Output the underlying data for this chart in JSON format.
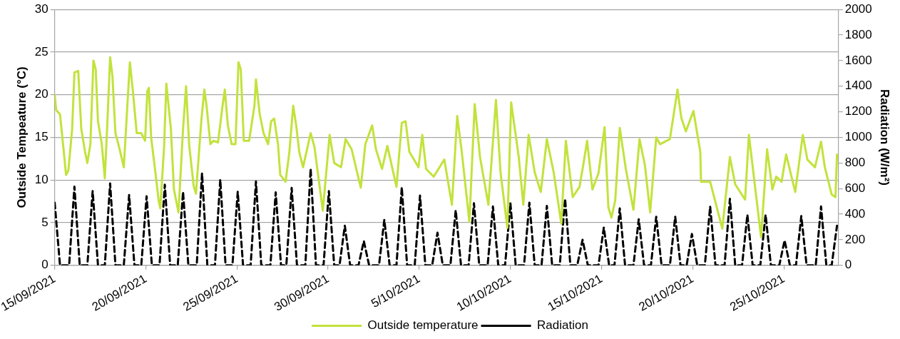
{
  "chart_data": {
    "type": "line",
    "ylabel": "Outside Tempeature (°C)",
    "y2label": "Radiation (W/m²)",
    "xlim": [
      "2021-09-15",
      "2021-10-28"
    ],
    "xticks": [
      {
        "value": "2021-09-15",
        "label": "15/09/2021"
      },
      {
        "value": "2021-09-20",
        "label": "20/09/2021"
      },
      {
        "value": "2021-09-25",
        "label": "25/09/2021"
      },
      {
        "value": "2021-09-30",
        "label": "30/09/2021"
      },
      {
        "value": "2021-10-05",
        "label": "5/10/2021"
      },
      {
        "value": "2021-10-10",
        "label": "10/10/2021"
      },
      {
        "value": "2021-10-15",
        "label": "15/10/2021"
      },
      {
        "value": "2021-10-20",
        "label": "20/10/2021"
      },
      {
        "value": "2021-10-25",
        "label": "25/10/2021"
      }
    ],
    "ylim": [
      0,
      30
    ],
    "yticks": [
      0,
      5,
      10,
      15,
      20,
      25,
      30
    ],
    "y2lim": [
      0,
      2000
    ],
    "y2ticks": [
      0,
      200,
      400,
      600,
      800,
      1000,
      1200,
      1400,
      1600,
      1800,
      2000
    ],
    "grid": "y",
    "legend": "bottom",
    "marker": "none",
    "series": [
      {
        "name": "Outside temperature",
        "color": "#c2e23c",
        "line_style": "solid",
        "x": [
          "2021-09-15T00:00",
          "2021-09-15T02:00",
          "2021-09-15T07:00",
          "2021-09-15T11:00",
          "2021-09-15T15:00",
          "2021-09-15T18:00",
          "2021-09-15T23:00",
          "2021-09-16T02:00",
          "2021-09-16T07:00",
          "2021-09-16T11:00",
          "2021-09-16T16:00",
          "2021-09-16T19:00",
          "2021-09-16T23:00",
          "2021-09-17T03:00",
          "2021-09-17T06:00",
          "2021-09-17T09:00",
          "2021-09-17T14:00",
          "2021-09-17T18:00",
          "2021-09-17T21:00",
          "2021-09-18T01:00",
          "2021-09-18T04:00",
          "2021-09-18T08:00",
          "2021-09-18T13:00",
          "2021-09-18T19:00",
          "2021-09-18T23:00",
          "2021-09-19T03:00",
          "2021-09-19T07:00",
          "2021-09-19T12:00",
          "2021-09-19T18:00",
          "2021-09-19T23:00",
          "2021-09-20T02:00",
          "2021-09-20T04:00",
          "2021-09-20T07:00",
          "2021-09-20T13:00",
          "2021-09-20T17:00",
          "2021-09-20T19:00",
          "2021-09-21T00:00",
          "2021-09-21T03:00",
          "2021-09-21T09:00",
          "2021-09-21T13:00",
          "2021-09-21T19:00",
          "2021-09-22T01:00",
          "2021-09-22T05:00",
          "2021-09-22T09:00",
          "2021-09-22T15:00",
          "2021-09-22T18:00",
          "2021-09-23T01:00",
          "2021-09-23T05:00",
          "2021-09-23T08:00",
          "2021-09-23T13:00",
          "2021-09-23T17:00",
          "2021-09-23T23:00",
          "2021-09-24T05:00",
          "2021-09-24T08:00",
          "2021-09-24T12:00",
          "2021-09-24T17:00",
          "2021-09-24T22:00",
          "2021-09-25T02:00",
          "2021-09-25T05:00",
          "2021-09-25T09:00",
          "2021-09-25T16:00",
          "2021-09-25T23:00",
          "2021-09-26T01:00",
          "2021-09-26T06:00",
          "2021-09-26T11:00",
          "2021-09-26T17:00",
          "2021-09-26T21:00",
          "2021-09-27T01:00",
          "2021-09-27T06:00",
          "2021-09-27T09:00",
          "2021-09-27T16:00",
          "2021-09-27T21:00",
          "2021-09-28T02:00",
          "2021-09-28T06:00",
          "2021-09-28T10:00",
          "2021-09-28T15:00",
          "2021-09-29T01:00",
          "2021-09-29T06:00",
          "2021-09-29T17:00",
          "2021-09-30T02:00",
          "2021-09-30T08:00",
          "2021-09-30T17:00",
          "2021-09-30T23:00",
          "2021-10-01T07:00",
          "2021-10-01T19:00",
          "2021-10-02T01:00",
          "2021-10-02T10:00",
          "2021-10-02T15:00",
          "2021-10-02T23:00",
          "2021-10-03T06:00",
          "2021-10-03T18:00",
          "2021-10-04T01:00",
          "2021-10-04T06:00",
          "2021-10-04T11:00",
          "2021-10-04T23:00",
          "2021-10-05T04:00",
          "2021-10-05T09:00",
          "2021-10-05T19:00",
          "2021-10-06T09:00",
          "2021-10-06T19:00",
          "2021-10-07T02:00",
          "2021-10-07T08:00",
          "2021-10-07T18:00",
          "2021-10-08T01:00",
          "2021-10-08T08:00",
          "2021-10-08T19:00",
          "2021-10-09T05:00",
          "2021-10-09T11:00",
          "2021-10-09T20:00",
          "2021-10-10T01:00",
          "2021-10-10T11:00",
          "2021-10-10T17:00",
          "2021-10-11T00:00",
          "2021-10-11T08:00",
          "2021-10-11T16:00",
          "2021-10-12T00:00",
          "2021-10-12T09:00",
          "2021-10-12T19:00",
          "2021-10-13T01:00",
          "2021-10-13T10:00",
          "2021-10-13T19:00",
          "2021-10-14T00:00",
          "2021-10-14T05:00",
          "2021-10-14T12:00",
          "2021-10-14T20:00",
          "2021-10-15T04:00",
          "2021-10-15T09:00",
          "2021-10-15T13:00",
          "2021-10-15T18:00",
          "2021-10-16T00:00",
          "2021-10-16T08:00",
          "2021-10-16T18:00",
          "2021-10-17T02:00",
          "2021-10-17T09:00",
          "2021-10-17T16:00",
          "2021-10-18T00:00",
          "2021-10-18T05:00",
          "2021-10-18T18:00",
          "2021-10-19T04:00",
          "2021-10-19T09:00",
          "2021-10-19T15:00",
          "2021-10-20T01:00",
          "2021-10-20T10:00",
          "2021-10-20T11:00",
          "2021-10-20T23:00",
          "2021-10-21T15:00",
          "2021-10-22T01:00",
          "2021-10-22T08:00",
          "2021-10-22T21:00",
          "2021-10-23T02:00",
          "2021-10-23T18:00",
          "2021-10-24T02:00",
          "2021-10-24T09:00",
          "2021-10-24T14:00",
          "2021-10-24T21:00",
          "2021-10-25T03:00",
          "2021-10-25T15:00",
          "2021-10-26T01:00",
          "2021-10-26T07:00",
          "2021-10-26T17:00",
          "2021-10-27T01:00",
          "2021-10-27T06:00",
          "2021-10-27T15:00",
          "2021-10-27T20:00",
          "2021-10-27T22:00"
        ],
        "values": [
          20.0,
          18.2,
          17.7,
          14.2,
          10.6,
          11.1,
          16.0,
          22.6,
          22.8,
          16.0,
          13.3,
          12.0,
          14.2,
          24.0,
          23.0,
          16.9,
          14.2,
          10.2,
          16.0,
          24.4,
          22.2,
          15.5,
          13.8,
          11.5,
          17.7,
          23.8,
          20.4,
          15.5,
          15.5,
          14.6,
          20.4,
          20.8,
          15.0,
          10.6,
          7.5,
          6.7,
          13.8,
          21.3,
          16.0,
          8.9,
          6.2,
          16.0,
          21.0,
          14.2,
          9.3,
          8.4,
          16.9,
          20.6,
          18.7,
          14.2,
          14.6,
          14.4,
          18.7,
          20.6,
          16.4,
          14.2,
          14.2,
          23.8,
          23.0,
          14.6,
          14.6,
          18.7,
          21.8,
          17.7,
          15.5,
          14.2,
          16.9,
          17.2,
          14.2,
          10.6,
          9.8,
          13.3,
          18.7,
          16.4,
          13.3,
          11.5,
          15.5,
          13.9,
          6.4,
          15.3,
          12.0,
          11.5,
          14.8,
          13.6,
          9.1,
          14.2,
          16.4,
          13.6,
          11.3,
          14.0,
          9.2,
          16.7,
          16.9,
          13.3,
          11.5,
          15.3,
          11.3,
          10.4,
          12.4,
          7.1,
          17.5,
          13.3,
          5.1,
          18.9,
          12.7,
          7.1,
          19.4,
          10.9,
          4.4,
          19.1,
          12.7,
          7.1,
          15.3,
          10.9,
          8.6,
          14.8,
          10.9,
          4.9,
          14.6,
          8.0,
          9.2,
          11.8,
          14.6,
          8.9,
          10.8,
          16.2,
          6.8,
          5.6,
          7.6,
          16.1,
          11.3,
          6.5,
          14.8,
          11.8,
          6.2,
          15.0,
          14.2,
          14.8,
          20.6,
          17.3,
          15.7,
          18.1,
          13.3,
          9.8,
          9.8,
          4.3,
          12.7,
          9.5,
          7.7,
          15.3,
          3.3,
          13.6,
          8.9,
          10.4,
          9.8,
          13.0,
          8.6,
          15.3,
          12.4,
          11.5,
          14.5,
          11.5,
          8.3,
          8.0,
          13.0
        ]
      },
      {
        "name": "Radiation",
        "color": "#000000",
        "line_style": "dashed",
        "axis": "y2",
        "x": [
          "2021-09-15T00:00",
          "2021-09-15T07:00",
          "2021-09-15T19:00",
          "2021-09-16T02:00",
          "2021-09-16T09:00",
          "2021-09-16T19:00",
          "2021-09-17T02:00",
          "2021-09-17T09:00",
          "2021-09-17T18:00",
          "2021-09-18T01:00",
          "2021-09-18T08:00",
          "2021-09-18T19:00",
          "2021-09-19T02:00",
          "2021-09-19T09:00",
          "2021-09-19T18:00",
          "2021-09-20T01:00",
          "2021-09-20T08:00",
          "2021-09-20T18:00",
          "2021-09-21T01:00",
          "2021-09-21T08:00",
          "2021-09-21T18:00",
          "2021-09-22T01:00",
          "2021-09-22T08:00",
          "2021-09-22T19:00",
          "2021-09-23T02:00",
          "2021-09-23T09:00",
          "2021-09-23T19:00",
          "2021-09-24T02:00",
          "2021-09-24T09:00",
          "2021-09-24T18:00",
          "2021-09-25T01:00",
          "2021-09-25T08:00",
          "2021-09-25T18:00",
          "2021-09-26T01:00",
          "2021-09-26T08:00",
          "2021-09-26T20:00",
          "2021-09-27T03:00",
          "2021-09-27T10:00",
          "2021-09-27T17:00",
          "2021-09-28T00:00",
          "2021-09-28T07:00",
          "2021-09-28T18:00",
          "2021-09-29T01:00",
          "2021-09-29T08:00",
          "2021-09-29T18:00",
          "2021-09-30T01:00",
          "2021-09-30T08:00",
          "2021-09-30T15:00",
          "2021-09-30T22:00",
          "2021-10-01T05:00",
          "2021-10-01T16:00",
          "2021-10-01T23:00",
          "2021-10-02T06:00",
          "2021-10-02T19:00",
          "2021-10-03T02:00",
          "2021-10-03T09:00",
          "2021-10-03T18:00",
          "2021-10-04T01:00",
          "2021-10-04T08:00",
          "2021-10-04T18:00",
          "2021-10-05T01:00",
          "2021-10-05T08:00",
          "2021-10-05T17:00",
          "2021-10-06T00:00",
          "2021-10-06T07:00",
          "2021-10-06T17:00",
          "2021-10-07T00:00",
          "2021-10-07T07:00",
          "2021-10-07T17:00",
          "2021-10-08T00:00",
          "2021-10-08T07:00",
          "2021-10-08T18:00",
          "2021-10-09T01:00",
          "2021-10-09T08:00",
          "2021-10-09T17:00",
          "2021-10-10T00:00",
          "2021-10-10T07:00",
          "2021-10-10T18:00",
          "2021-10-11T01:00",
          "2021-10-11T08:00",
          "2021-10-11T17:00",
          "2021-10-12T00:00",
          "2021-10-12T07:00",
          "2021-10-12T17:00",
          "2021-10-13T00:00",
          "2021-10-13T07:00",
          "2021-10-13T16:00",
          "2021-10-13T23:00",
          "2021-10-14T06:00",
          "2021-10-14T20:00",
          "2021-10-15T03:00",
          "2021-10-15T10:00",
          "2021-10-15T17:00",
          "2021-10-16T00:00",
          "2021-10-16T07:00",
          "2021-10-16T18:00",
          "2021-10-17T01:00",
          "2021-10-17T08:00",
          "2021-10-17T17:00",
          "2021-10-18T00:00",
          "2021-10-18T07:00",
          "2021-10-18T18:00",
          "2021-10-19T01:00",
          "2021-10-19T08:00",
          "2021-10-19T16:00",
          "2021-10-19T23:00",
          "2021-10-20T06:00",
          "2021-10-20T16:00",
          "2021-10-20T23:00",
          "2021-10-21T06:00",
          "2021-10-21T18:00",
          "2021-10-22T01:00",
          "2021-10-22T08:00",
          "2021-10-22T17:00",
          "2021-10-23T00:00",
          "2021-10-23T07:00",
          "2021-10-23T17:00",
          "2021-10-24T00:00",
          "2021-10-24T07:00",
          "2021-10-24T18:00",
          "2021-10-25T01:00",
          "2021-10-25T08:00",
          "2021-10-25T16:00",
          "2021-10-25T23:00",
          "2021-10-26T06:00",
          "2021-10-26T18:00",
          "2021-10-27T01:00",
          "2021-10-27T08:00",
          "2021-10-27T15:00",
          "2021-10-27T22:00"
        ],
        "values": [
          490,
          0,
          0,
          615,
          0,
          0,
          580,
          0,
          0,
          640,
          0,
          0,
          550,
          0,
          0,
          540,
          0,
          0,
          630,
          0,
          0,
          575,
          0,
          0,
          720,
          0,
          0,
          670,
          0,
          0,
          575,
          0,
          0,
          655,
          0,
          0,
          570,
          0,
          0,
          605,
          0,
          0,
          755,
          0,
          0,
          580,
          0,
          0,
          310,
          0,
          0,
          190,
          0,
          0,
          355,
          0,
          0,
          610,
          0,
          0,
          545,
          0,
          0,
          255,
          0,
          0,
          430,
          0,
          0,
          485,
          0,
          0,
          460,
          0,
          0,
          485,
          0,
          0,
          490,
          0,
          0,
          465,
          0,
          0,
          520,
          0,
          0,
          200,
          0,
          0,
          295,
          0,
          0,
          445,
          0,
          0,
          360,
          0,
          0,
          380,
          0,
          0,
          380,
          0,
          0,
          245,
          0,
          0,
          460,
          0,
          0,
          520,
          0,
          0,
          395,
          0,
          0,
          395,
          0,
          0,
          195,
          0,
          0,
          385,
          0,
          0,
          460,
          0,
          0,
          310
        ]
      }
    ]
  }
}
